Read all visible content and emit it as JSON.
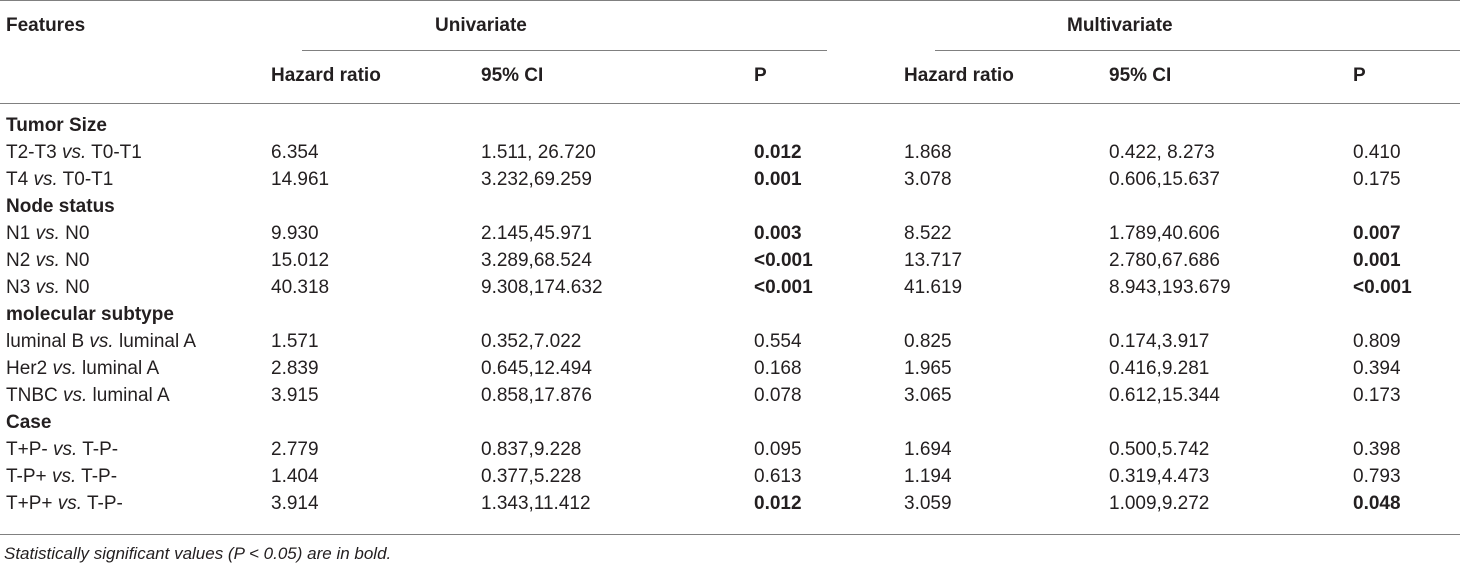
{
  "header": {
    "features": "Features",
    "univariate": "Univariate",
    "multivariate": "Multivariate",
    "columns": [
      "Hazard ratio",
      "95% CI",
      "P",
      "Hazard ratio",
      "95% CI",
      "P"
    ]
  },
  "sections": [
    {
      "title": "Tumor Size",
      "rows": [
        {
          "pre": "T2-T3 ",
          "vs": "vs.",
          "post": " T0-T1",
          "u_hr": "6.354",
          "u_ci": "1.511, 26.720",
          "u_p": "0.012",
          "u_p_bold": true,
          "m_hr": "1.868",
          "m_ci": "0.422, 8.273",
          "m_p": "0.410",
          "m_p_bold": false
        },
        {
          "pre": "T4 ",
          "vs": "vs.",
          "post": " T0-T1",
          "u_hr": "14.961",
          "u_ci": "3.232,69.259",
          "u_p": "0.001",
          "u_p_bold": true,
          "m_hr": "3.078",
          "m_ci": "0.606,15.637",
          "m_p": "0.175",
          "m_p_bold": false
        }
      ]
    },
    {
      "title": "Node status",
      "rows": [
        {
          "pre": "N1 ",
          "vs": "vs.",
          "post": " N0",
          "u_hr": "9.930",
          "u_ci": "2.145,45.971",
          "u_p": "0.003",
          "u_p_bold": true,
          "m_hr": "8.522",
          "m_ci": "1.789,40.606",
          "m_p": "0.007",
          "m_p_bold": true
        },
        {
          "pre": "N2 ",
          "vs": "vs.",
          "post": " N0",
          "u_hr": "15.012",
          "u_ci": "3.289,68.524",
          "u_p": "<0.001",
          "u_p_bold": true,
          "m_hr": "13.717",
          "m_ci": "2.780,67.686",
          "m_p": "0.001",
          "m_p_bold": true
        },
        {
          "pre": "N3 ",
          "vs": "vs.",
          "post": " N0",
          "u_hr": "40.318",
          "u_ci": "9.308,174.632",
          "u_p": "<0.001",
          "u_p_bold": true,
          "m_hr": "41.619",
          "m_ci": "8.943,193.679",
          "m_p": "<0.001",
          "m_p_bold": true
        }
      ]
    },
    {
      "title": "molecular subtype",
      "rows": [
        {
          "pre": "luminal B ",
          "vs": "vs.",
          "post": " luminal A",
          "u_hr": "1.571",
          "u_ci": "0.352,7.022",
          "u_p": "0.554",
          "u_p_bold": false,
          "m_hr": "0.825",
          "m_ci": "0.174,3.917",
          "m_p": "0.809",
          "m_p_bold": false
        },
        {
          "pre": "Her2 ",
          "vs": "vs.",
          "post": " luminal A",
          "u_hr": "2.839",
          "u_ci": "0.645,12.494",
          "u_p": "0.168",
          "u_p_bold": false,
          "m_hr": "1.965",
          "m_ci": "0.416,9.281",
          "m_p": "0.394",
          "m_p_bold": false
        },
        {
          "pre": "TNBC ",
          "vs": "vs.",
          "post": " luminal A",
          "u_hr": "3.915",
          "u_ci": "0.858,17.876",
          "u_p": "0.078",
          "u_p_bold": false,
          "m_hr": "3.065",
          "m_ci": "0.612,15.344",
          "m_p": "0.173",
          "m_p_bold": false
        }
      ]
    },
    {
      "title": "Case",
      "rows": [
        {
          "pre": "T+P- ",
          "vs": "vs.",
          "post": " T-P-",
          "u_hr": "2.779",
          "u_ci": "0.837,9.228",
          "u_p": "0.095",
          "u_p_bold": false,
          "m_hr": "1.694",
          "m_ci": "0.500,5.742",
          "m_p": "0.398",
          "m_p_bold": false
        },
        {
          "pre": "T-P+ ",
          "vs": "vs.",
          "post": " T-P-",
          "u_hr": "1.404",
          "u_ci": "0.377,5.228",
          "u_p": "0.613",
          "u_p_bold": false,
          "m_hr": "1.194",
          "m_ci": "0.319,4.473",
          "m_p": "0.793",
          "m_p_bold": false
        },
        {
          "pre": "T+P+ ",
          "vs": "vs.",
          "post": " T-P-",
          "u_hr": "3.914",
          "u_ci": "1.343,11.412",
          "u_p": "0.012",
          "u_p_bold": true,
          "m_hr": "3.059",
          "m_ci": "1.009,9.272",
          "m_p": "0.048",
          "m_p_bold": true
        }
      ]
    }
  ],
  "footnote": "Statistically significant values (P < 0.05) are in bold."
}
